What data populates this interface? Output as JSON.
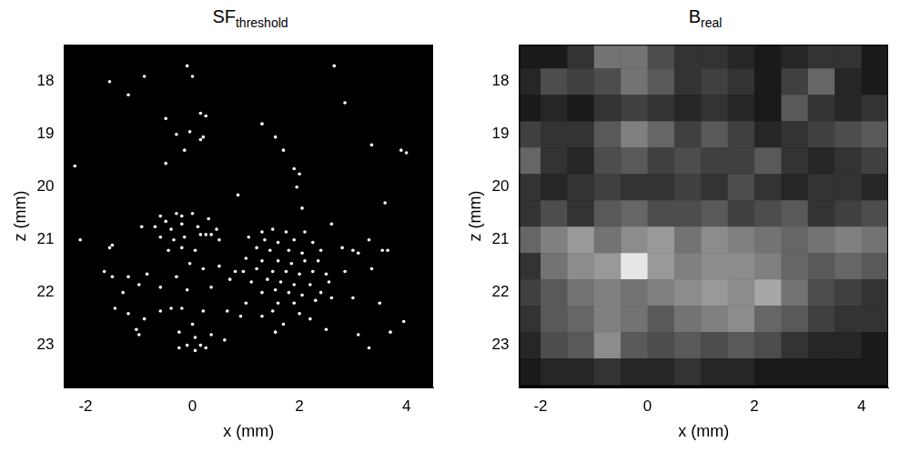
{
  "chart_data": [
    {
      "type": "scatter",
      "title": "SF",
      "title_subscript": "threshold",
      "x_label": "x (mm)",
      "y_label": "z (mm)",
      "xlim": [
        -2.4,
        4.5
      ],
      "xticks": [
        -2,
        0,
        2,
        4
      ],
      "ylim": [
        23.8,
        17.3
      ],
      "yticks": [
        18,
        19,
        20,
        21,
        22,
        23
      ],
      "color": "#ffffff",
      "marker": "circle",
      "x": [
        -1.55,
        -1.2,
        -0.9,
        -0.1,
        0.0,
        2.65,
        2.85,
        -0.5,
        0.15,
        0.25,
        -0.05,
        -0.3,
        0.2,
        0.15,
        -0.15,
        -0.5,
        1.3,
        1.55,
        1.7,
        -2.2,
        3.35,
        3.9,
        4.0,
        1.9,
        2.0,
        1.95,
        3.6,
        0.85,
        2.05,
        -0.6,
        -0.5,
        -0.3,
        -0.2,
        0.0,
        0.3,
        -0.7,
        -0.4,
        -0.2,
        0.1,
        0.45,
        -0.95,
        -0.6,
        -0.35,
        -0.15,
        0.15,
        0.25,
        0.35,
        0.5,
        -0.45,
        -0.2,
        0.05,
        -1.5,
        -1.55,
        -2.1,
        -1.2,
        -0.85,
        -0.3,
        -0.05,
        0.2,
        0.5,
        0.8,
        -1.0,
        -0.6,
        -0.1,
        0.35,
        0.7,
        1.3,
        1.5,
        1.75,
        2.1,
        1.05,
        1.35,
        1.6,
        1.9,
        2.25,
        1.2,
        1.45,
        1.8,
        2.05,
        2.4,
        1.0,
        1.3,
        1.6,
        1.85,
        2.1,
        2.35,
        0.95,
        1.2,
        1.5,
        1.75,
        2.0,
        2.25,
        2.5,
        1.1,
        1.4,
        1.65,
        1.9,
        2.2,
        2.55,
        1.3,
        1.55,
        1.8,
        2.05,
        2.4,
        2.6,
        1.0,
        1.6,
        1.9,
        2.3,
        0.9,
        1.3,
        1.5,
        2.0,
        2.2,
        1.7,
        2.5,
        1.55,
        2.6,
        2.8,
        3.0,
        3.1,
        3.55,
        3.65,
        3.3,
        3.35,
        3.0,
        3.5,
        2.85,
        3.95,
        3.1,
        3.7,
        3.3,
        -1.5,
        -1.45,
        -1.3,
        -1.2,
        -0.9,
        -1.05,
        -1.0,
        -0.4,
        -0.2,
        -0.6,
        0.2,
        0.0,
        -0.25,
        0.05,
        0.35,
        0.15,
        0.25,
        0.05,
        -0.1,
        -0.25,
        0.65,
        0.6,
        -1.65
      ],
      "y": [
        18.0,
        18.25,
        17.9,
        17.7,
        17.9,
        17.7,
        18.4,
        18.7,
        18.6,
        18.65,
        18.95,
        19.0,
        19.05,
        19.1,
        19.3,
        19.55,
        18.8,
        19.05,
        19.3,
        19.6,
        19.2,
        19.3,
        19.35,
        19.65,
        19.75,
        20.0,
        20.3,
        20.15,
        20.4,
        20.55,
        20.65,
        20.5,
        20.55,
        20.5,
        20.6,
        20.75,
        20.8,
        20.7,
        20.75,
        20.8,
        20.75,
        20.95,
        21.0,
        20.95,
        20.9,
        20.9,
        20.9,
        21.0,
        21.2,
        21.15,
        21.2,
        21.1,
        21.15,
        21.0,
        21.7,
        21.65,
        21.7,
        21.45,
        21.55,
        21.5,
        21.6,
        21.85,
        21.9,
        21.95,
        21.9,
        21.75,
        20.85,
        20.8,
        20.85,
        20.85,
        20.95,
        21.0,
        21.05,
        21.0,
        21.05,
        21.15,
        21.2,
        21.2,
        21.25,
        21.2,
        21.35,
        21.4,
        21.4,
        21.45,
        21.4,
        21.4,
        21.6,
        21.55,
        21.6,
        21.6,
        21.65,
        21.6,
        21.65,
        21.8,
        21.75,
        21.8,
        21.85,
        21.85,
        21.8,
        22.0,
        21.95,
        22.0,
        22.05,
        22.0,
        22.1,
        22.2,
        22.2,
        22.2,
        22.15,
        22.45,
        22.45,
        22.35,
        22.4,
        22.5,
        22.6,
        22.7,
        22.75,
        20.7,
        21.15,
        21.2,
        21.25,
        21.2,
        21.2,
        21.0,
        21.55,
        22.1,
        22.2,
        21.6,
        22.55,
        22.8,
        22.75,
        23.05,
        21.7,
        22.3,
        22.0,
        22.4,
        22.5,
        22.7,
        22.8,
        22.3,
        22.3,
        22.35,
        22.35,
        22.6,
        22.75,
        22.85,
        22.8,
        23.0,
        23.05,
        23.1,
        23.0,
        23.05,
        22.35,
        22.9,
        21.6
      ]
    },
    {
      "type": "heatmap",
      "title": "B",
      "title_subscript": "real",
      "x_label": "x (mm)",
      "y_label": "z (mm)",
      "xlim": [
        -2.4,
        4.5
      ],
      "xticks": [
        -2,
        0,
        2,
        4
      ],
      "ylim": [
        23.8,
        17.3
      ],
      "yticks": [
        18,
        19,
        20,
        21,
        22,
        23
      ],
      "color": "gray",
      "x": [
        -2.25,
        -1.75,
        -1.25,
        -0.75,
        -0.25,
        0.25,
        0.75,
        1.25,
        1.75,
        2.25,
        2.75,
        3.25,
        3.75,
        4.25
      ],
      "y": [
        17.5,
        18.0,
        18.5,
        19.0,
        19.5,
        20.0,
        20.5,
        21.0,
        21.5,
        22.0,
        22.5,
        23.0,
        23.5
      ],
      "cells": [
        [
          0.1,
          0.1,
          0.2,
          0.45,
          0.45,
          0.3,
          0.2,
          0.2,
          0.15,
          0.1,
          0.15,
          0.2,
          0.2,
          0.1
        ],
        [
          0.15,
          0.3,
          0.25,
          0.3,
          0.45,
          0.35,
          0.2,
          0.25,
          0.2,
          0.1,
          0.25,
          0.4,
          0.15,
          0.1
        ],
        [
          0.1,
          0.15,
          0.1,
          0.2,
          0.25,
          0.2,
          0.15,
          0.2,
          0.15,
          0.1,
          0.35,
          0.2,
          0.15,
          0.2
        ],
        [
          0.25,
          0.2,
          0.2,
          0.35,
          0.5,
          0.4,
          0.25,
          0.35,
          0.25,
          0.15,
          0.2,
          0.25,
          0.3,
          0.35
        ],
        [
          0.4,
          0.2,
          0.15,
          0.3,
          0.35,
          0.25,
          0.3,
          0.25,
          0.25,
          0.35,
          0.2,
          0.15,
          0.2,
          0.25
        ],
        [
          0.2,
          0.15,
          0.2,
          0.25,
          0.2,
          0.2,
          0.25,
          0.2,
          0.3,
          0.2,
          0.15,
          0.2,
          0.2,
          0.15
        ],
        [
          0.2,
          0.3,
          0.2,
          0.35,
          0.4,
          0.3,
          0.3,
          0.35,
          0.25,
          0.3,
          0.35,
          0.2,
          0.25,
          0.3
        ],
        [
          0.4,
          0.5,
          0.6,
          0.45,
          0.55,
          0.6,
          0.45,
          0.55,
          0.5,
          0.45,
          0.4,
          0.45,
          0.5,
          0.45
        ],
        [
          0.2,
          0.45,
          0.55,
          0.6,
          0.9,
          0.6,
          0.5,
          0.55,
          0.55,
          0.5,
          0.4,
          0.35,
          0.4,
          0.35
        ],
        [
          0.25,
          0.35,
          0.45,
          0.5,
          0.45,
          0.5,
          0.55,
          0.6,
          0.55,
          0.65,
          0.45,
          0.3,
          0.25,
          0.2
        ],
        [
          0.2,
          0.35,
          0.4,
          0.5,
          0.45,
          0.35,
          0.45,
          0.5,
          0.55,
          0.4,
          0.35,
          0.25,
          0.2,
          0.2
        ],
        [
          0.15,
          0.3,
          0.35,
          0.55,
          0.35,
          0.3,
          0.35,
          0.3,
          0.35,
          0.3,
          0.2,
          0.15,
          0.15,
          0.1
        ],
        [
          0.1,
          0.15,
          0.15,
          0.2,
          0.15,
          0.15,
          0.2,
          0.15,
          0.15,
          0.1,
          0.1,
          0.1,
          0.1,
          0.1
        ]
      ]
    }
  ]
}
